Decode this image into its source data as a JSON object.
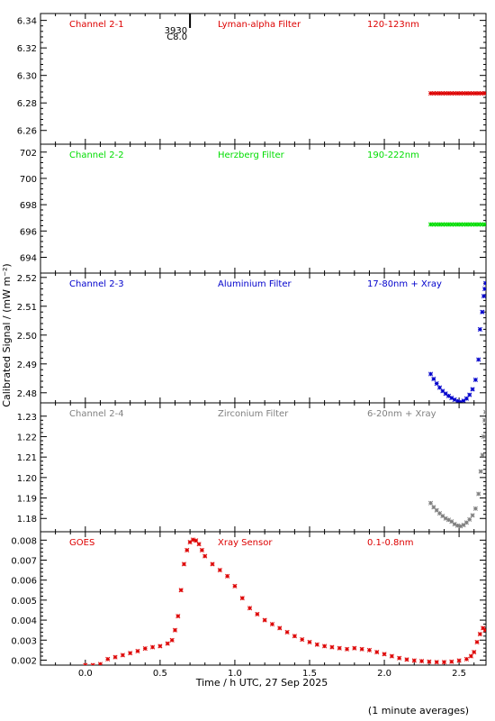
{
  "chart_data": {
    "type": "scatter",
    "xlabel": "Time / h UTC, 27 Sep 2025",
    "ylabel": "Calibrated Signal / (mW m⁻²)",
    "footnote": "(1 minute averages)",
    "xlim": [
      -0.3,
      2.68
    ],
    "x_ticks": [
      0.0,
      0.5,
      1.0,
      1.5,
      2.0,
      2.5
    ],
    "x_tick_labels": [
      "0.0",
      "0.5",
      "1.0",
      "1.5",
      "2.0",
      "2.5"
    ],
    "marker_text": "3930",
    "marker_text2": "C8.0",
    "marker_x": 0.7,
    "panels": [
      {
        "name": "Channel 2-1",
        "filter": "Lyman-alpha Filter",
        "band": "120-123nm",
        "color": "#dd0000",
        "ylim": [
          6.25,
          6.345
        ],
        "y_ticks": [
          6.26,
          6.28,
          6.3,
          6.32,
          6.34
        ],
        "y_tick_labels": [
          "6.26",
          "6.28",
          "6.30",
          "6.32",
          "6.34"
        ],
        "points": [
          [
            2.31,
            6.287
          ],
          [
            2.33,
            6.287
          ],
          [
            2.35,
            6.287
          ],
          [
            2.37,
            6.287
          ],
          [
            2.39,
            6.287
          ],
          [
            2.41,
            6.287
          ],
          [
            2.43,
            6.287
          ],
          [
            2.45,
            6.287
          ],
          [
            2.47,
            6.287
          ],
          [
            2.49,
            6.287
          ],
          [
            2.51,
            6.287
          ],
          [
            2.53,
            6.287
          ],
          [
            2.55,
            6.287
          ],
          [
            2.57,
            6.287
          ],
          [
            2.59,
            6.287
          ],
          [
            2.61,
            6.287
          ],
          [
            2.63,
            6.287
          ],
          [
            2.65,
            6.287
          ],
          [
            2.67,
            6.287
          ]
        ]
      },
      {
        "name": "Channel 2-2",
        "filter": "Herzberg Filter",
        "band": "190-222nm",
        "color": "#00dd00",
        "ylim": [
          692.8,
          702.6
        ],
        "y_ticks": [
          694,
          696,
          698,
          700,
          702
        ],
        "y_tick_labels": [
          "694",
          "696",
          "698",
          "700",
          "702"
        ],
        "points": [
          [
            2.31,
            696.5
          ],
          [
            2.33,
            696.5
          ],
          [
            2.35,
            696.5
          ],
          [
            2.37,
            696.5
          ],
          [
            2.39,
            696.5
          ],
          [
            2.41,
            696.5
          ],
          [
            2.43,
            696.5
          ],
          [
            2.45,
            696.5
          ],
          [
            2.47,
            696.5
          ],
          [
            2.49,
            696.5
          ],
          [
            2.51,
            696.5
          ],
          [
            2.53,
            696.5
          ],
          [
            2.55,
            696.5
          ],
          [
            2.57,
            696.5
          ],
          [
            2.59,
            696.5
          ],
          [
            2.61,
            696.5
          ],
          [
            2.63,
            696.5
          ],
          [
            2.65,
            696.5
          ],
          [
            2.67,
            696.5
          ]
        ]
      },
      {
        "name": "Channel 2-3",
        "filter": "Aluminium Filter",
        "band": "17-80nm + Xray",
        "color": "#0000cc",
        "ylim": [
          2.4765,
          2.5215
        ],
        "y_ticks": [
          2.48,
          2.49,
          2.5,
          2.51,
          2.52
        ],
        "y_tick_labels": [
          "2.48",
          "2.49",
          "2.50",
          "2.51",
          "2.52"
        ],
        "points": [
          [
            2.31,
            2.4865
          ],
          [
            2.33,
            2.4848
          ],
          [
            2.35,
            2.4832
          ],
          [
            2.37,
            2.4818
          ],
          [
            2.39,
            2.4806
          ],
          [
            2.41,
            2.4797
          ],
          [
            2.43,
            2.4789
          ],
          [
            2.45,
            2.4782
          ],
          [
            2.47,
            2.4776
          ],
          [
            2.49,
            2.4771
          ],
          [
            2.51,
            2.4768
          ],
          [
            2.53,
            2.4772
          ],
          [
            2.55,
            2.478
          ],
          [
            2.57,
            2.4793
          ],
          [
            2.59,
            2.4812
          ],
          [
            2.61,
            2.4845
          ],
          [
            2.63,
            2.4915
          ],
          [
            2.64,
            2.502
          ],
          [
            2.655,
            2.508
          ],
          [
            2.665,
            2.5135
          ],
          [
            2.672,
            2.516
          ],
          [
            2.678,
            2.518
          ]
        ]
      },
      {
        "name": "Channel 2-4",
        "filter": "Zirconium Filter",
        "band": "6-20nm + Xray",
        "color": "#808080",
        "ylim": [
          1.1735,
          1.2365
        ],
        "y_ticks": [
          1.18,
          1.19,
          1.2,
          1.21,
          1.22,
          1.23
        ],
        "y_tick_labels": [
          "1.18",
          "1.19",
          "1.20",
          "1.21",
          "1.22",
          "1.23"
        ],
        "points": [
          [
            2.31,
            1.1875
          ],
          [
            2.33,
            1.1855
          ],
          [
            2.35,
            1.184
          ],
          [
            2.37,
            1.1825
          ],
          [
            2.39,
            1.1812
          ],
          [
            2.41,
            1.18
          ],
          [
            2.43,
            1.1793
          ],
          [
            2.45,
            1.1785
          ],
          [
            2.47,
            1.1772
          ],
          [
            2.49,
            1.1765
          ],
          [
            2.51,
            1.1762
          ],
          [
            2.53,
            1.1768
          ],
          [
            2.55,
            1.178
          ],
          [
            2.57,
            1.1795
          ],
          [
            2.59,
            1.1815
          ],
          [
            2.61,
            1.1848
          ],
          [
            2.63,
            1.192
          ],
          [
            2.645,
            1.203
          ],
          [
            2.657,
            1.211
          ],
          [
            2.665,
            1.22
          ],
          [
            2.672,
            1.228
          ],
          [
            2.678,
            1.232
          ]
        ]
      },
      {
        "name": "GOES",
        "filter": "Xray Sensor",
        "band": "0.1-0.8nm",
        "color": "#dd0000",
        "ylim": [
          0.00175,
          0.00842
        ],
        "y_ticks": [
          0.002,
          0.003,
          0.004,
          0.005,
          0.006,
          0.007,
          0.008
        ],
        "y_tick_labels": [
          "0.002",
          "0.003",
          "0.004",
          "0.005",
          "0.006",
          "0.007",
          "0.008"
        ],
        "points": [
          [
            0.0,
            0.00175
          ],
          [
            0.05,
            0.00175
          ],
          [
            0.1,
            0.0018
          ],
          [
            0.15,
            0.00205
          ],
          [
            0.2,
            0.00215
          ],
          [
            0.25,
            0.00225
          ],
          [
            0.3,
            0.00235
          ],
          [
            0.35,
            0.00245
          ],
          [
            0.4,
            0.00258
          ],
          [
            0.45,
            0.00265
          ],
          [
            0.5,
            0.0027
          ],
          [
            0.55,
            0.00283
          ],
          [
            0.58,
            0.003
          ],
          [
            0.6,
            0.0035
          ],
          [
            0.62,
            0.0042
          ],
          [
            0.64,
            0.0055
          ],
          [
            0.66,
            0.0068
          ],
          [
            0.68,
            0.0075
          ],
          [
            0.7,
            0.0079
          ],
          [
            0.72,
            0.00802
          ],
          [
            0.74,
            0.00798
          ],
          [
            0.76,
            0.0078
          ],
          [
            0.78,
            0.0075
          ],
          [
            0.8,
            0.0072
          ],
          [
            0.85,
            0.0068
          ],
          [
            0.9,
            0.0065
          ],
          [
            0.95,
            0.0062
          ],
          [
            1.0,
            0.0057
          ],
          [
            1.05,
            0.0051
          ],
          [
            1.1,
            0.0046
          ],
          [
            1.15,
            0.0043
          ],
          [
            1.2,
            0.004
          ],
          [
            1.25,
            0.0038
          ],
          [
            1.3,
            0.0036
          ],
          [
            1.35,
            0.0034
          ],
          [
            1.4,
            0.0032
          ],
          [
            1.45,
            0.00303
          ],
          [
            1.5,
            0.0029
          ],
          [
            1.55,
            0.00278
          ],
          [
            1.6,
            0.0027
          ],
          [
            1.65,
            0.00265
          ],
          [
            1.7,
            0.0026
          ],
          [
            1.75,
            0.00255
          ],
          [
            1.8,
            0.0026
          ],
          [
            1.85,
            0.00255
          ],
          [
            1.9,
            0.0025
          ],
          [
            1.95,
            0.0024
          ],
          [
            2.0,
            0.0023
          ],
          [
            2.05,
            0.0022
          ],
          [
            2.1,
            0.0021
          ],
          [
            2.15,
            0.00203
          ],
          [
            2.2,
            0.00198
          ],
          [
            2.25,
            0.00195
          ],
          [
            2.3,
            0.00192
          ],
          [
            2.35,
            0.0019
          ],
          [
            2.4,
            0.0019
          ],
          [
            2.45,
            0.00192
          ],
          [
            2.5,
            0.00198
          ],
          [
            2.55,
            0.00205
          ],
          [
            2.58,
            0.0022
          ],
          [
            2.6,
            0.0024
          ],
          [
            2.62,
            0.0029
          ],
          [
            2.64,
            0.0033
          ],
          [
            2.66,
            0.0036
          ],
          [
            2.675,
            0.0035
          ]
        ]
      }
    ]
  }
}
